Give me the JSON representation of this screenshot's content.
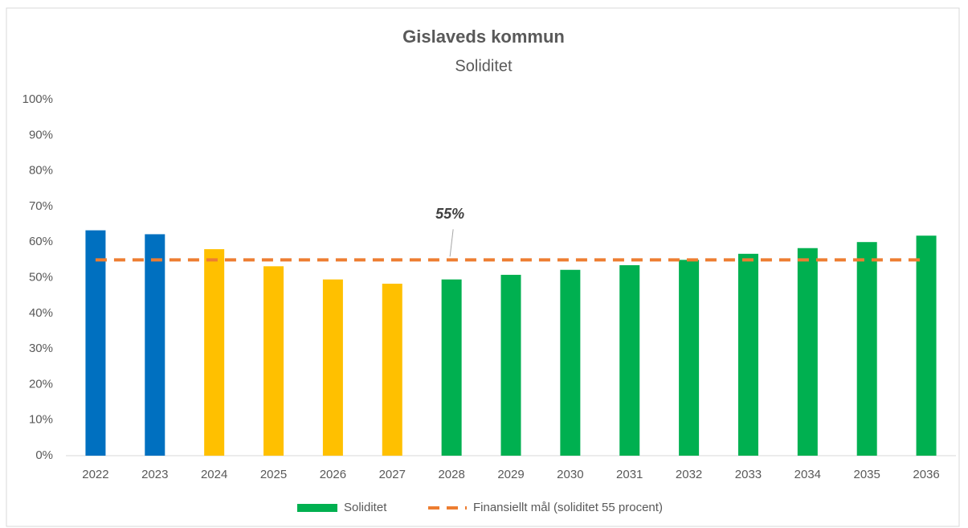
{
  "chart_data": {
    "type": "bar",
    "title": "Gislaveds kommun",
    "subtitle": "Soliditet",
    "categories": [
      "2022",
      "2023",
      "2024",
      "2025",
      "2026",
      "2027",
      "2028",
      "2029",
      "2030",
      "2031",
      "2032",
      "2033",
      "2034",
      "2035",
      "2036"
    ],
    "series": [
      {
        "name": "Soliditet",
        "type": "bar",
        "color": "#00b050",
        "colors": [
          "#0070c0",
          "#0070c0",
          "#ffc000",
          "#ffc000",
          "#ffc000",
          "#ffc000",
          "#00b050",
          "#00b050",
          "#00b050",
          "#00b050",
          "#00b050",
          "#00b050",
          "#00b050",
          "#00b050",
          "#00b050"
        ],
        "values": [
          63.3,
          62.2,
          58,
          53.2,
          49.5,
          48.3,
          49.5,
          50.8,
          52.2,
          53.5,
          55,
          56.7,
          58.3,
          60,
          61.8
        ]
      },
      {
        "name": "Finansiellt mål (soliditet 55 procent)",
        "type": "line",
        "color": "#ed7d31",
        "dashed": true,
        "values": [
          55,
          55,
          55,
          55,
          55,
          55,
          55,
          55,
          55,
          55,
          55,
          55,
          55,
          55,
          55
        ],
        "value_labels": [
          null,
          null,
          null,
          null,
          null,
          null,
          "55%",
          null,
          null,
          null,
          null,
          null,
          null,
          null,
          null
        ]
      }
    ],
    "ylim": [
      0,
      100
    ],
    "yticks": [
      {
        "value": 0,
        "label": "0%"
      },
      {
        "value": 10,
        "label": "10%"
      },
      {
        "value": 20,
        "label": "20%"
      },
      {
        "value": 30,
        "label": "30%"
      },
      {
        "value": 40,
        "label": "40%"
      },
      {
        "value": 50,
        "label": "50%"
      },
      {
        "value": 60,
        "label": "60%"
      },
      {
        "value": 70,
        "label": "70%"
      },
      {
        "value": 80,
        "label": "80%"
      },
      {
        "value": 90,
        "label": "90%"
      },
      {
        "value": 100,
        "label": "100%"
      }
    ],
    "grid": false,
    "legend": "bottom"
  }
}
